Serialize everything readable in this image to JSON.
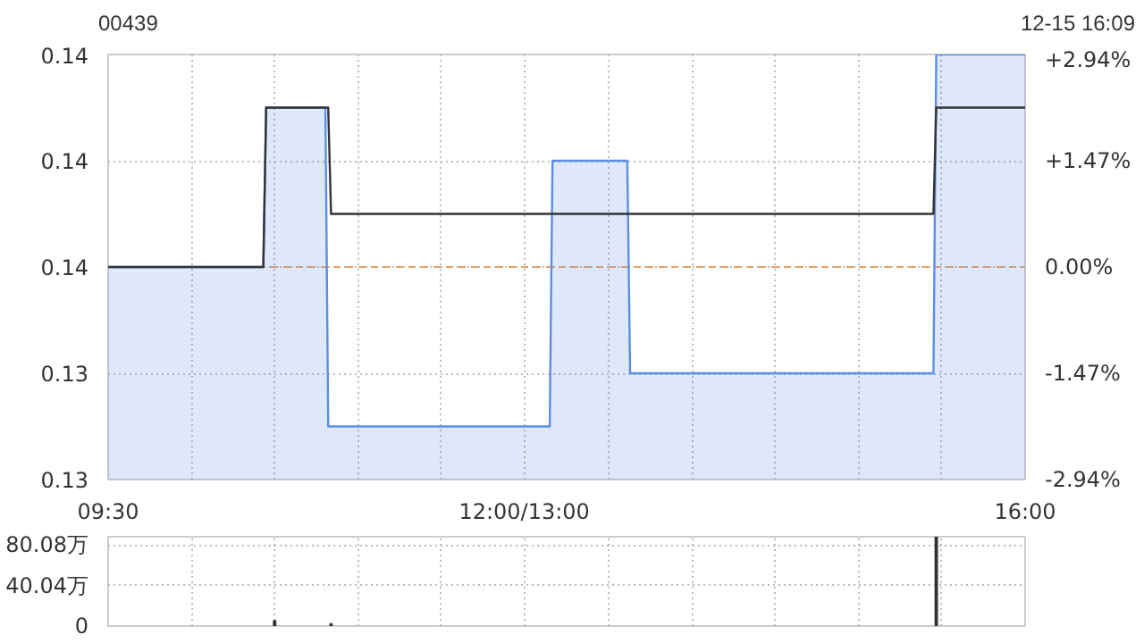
{
  "chart_data": [
    {
      "type": "area",
      "title": "00439",
      "annotations": [
        "12-15 16:09"
      ],
      "series": [
        {
          "type": "area",
          "color": "#5b8ee6",
          "x": [
            9.5,
            10.6,
            10.62,
            11.04,
            11.06,
            12.63,
            12.65,
            13.18,
            13.2,
            15.35,
            15.37,
            16
          ],
          "values": [
            0.136,
            0.136,
            0.139,
            0.139,
            0.133,
            0.133,
            0.138,
            0.138,
            0.134,
            0.134,
            0.14,
            0.14
          ]
        },
        {
          "type": "line",
          "color": "#333333",
          "x": [
            9.5,
            10.6,
            10.62,
            11.06,
            11.08,
            15.35,
            15.37,
            16
          ],
          "values": [
            0.136,
            0.136,
            0.139,
            0.139,
            0.137,
            0.137,
            0.139,
            0.139
          ]
        }
      ],
      "xlim": [
        9.5,
        16
      ],
      "xticks": [
        {
          "value": 9.5,
          "label": "09:30"
        },
        {
          "value": 10.09,
          "label": null
        },
        {
          "value": 10.68,
          "label": null
        },
        {
          "value": 11.27,
          "label": null
        },
        {
          "value": 11.86,
          "label": null
        },
        {
          "value": 12.45,
          "label": "12:00/13:00"
        },
        {
          "value": 13.05,
          "label": null
        },
        {
          "value": 13.64,
          "label": null
        },
        {
          "value": 14.23,
          "label": null
        },
        {
          "value": 14.82,
          "label": null
        },
        {
          "value": 15.41,
          "label": null
        },
        {
          "value": 16,
          "label": "16:00"
        }
      ],
      "ylim": [
        0.132,
        0.14
      ],
      "yticks": [
        {
          "value": 0.132,
          "label": "0.13"
        },
        {
          "value": 0.134,
          "label": "0.13"
        },
        {
          "value": 0.136,
          "label": "0.14"
        },
        {
          "value": 0.138,
          "label": "0.14"
        },
        {
          "value": 0.14,
          "label": "0.14"
        }
      ],
      "y2lim": [
        -2.94,
        2.94
      ],
      "y2ticks": [
        {
          "value": -2.94,
          "label": "-2.94%"
        },
        {
          "value": -1.47,
          "label": "-1.47%"
        },
        {
          "value": 0,
          "label": "0.00%"
        },
        {
          "value": 1.47,
          "label": "+1.47%"
        },
        {
          "value": 2.94,
          "label": "+2.94%"
        }
      ],
      "ref_lines": [
        {
          "axis": "y",
          "value": 0.136,
          "color": "#f0a060",
          "line_style": "dashed"
        }
      ],
      "grid": true
    },
    {
      "type": "bar",
      "x": [
        10.68,
        11.08,
        15.37
      ],
      "values": [
        5,
        2,
        88
      ],
      "color": "#333333",
      "xlim": [
        9.5,
        16
      ],
      "xticks": [
        {
          "value": 9.5,
          "label": null
        },
        {
          "value": 10.09,
          "label": null
        },
        {
          "value": 10.68,
          "label": null
        },
        {
          "value": 11.27,
          "label": null
        },
        {
          "value": 11.86,
          "label": null
        },
        {
          "value": 12.45,
          "label": null
        },
        {
          "value": 13.05,
          "label": null
        },
        {
          "value": 13.64,
          "label": null
        },
        {
          "value": 14.23,
          "label": null
        },
        {
          "value": 14.82,
          "label": null
        },
        {
          "value": 15.41,
          "label": null
        },
        {
          "value": 16,
          "label": null
        }
      ],
      "ylim": [
        0,
        88
      ],
      "yticks": [
        {
          "value": 0,
          "label": "0"
        },
        {
          "value": 40.04,
          "label": "40.04万"
        },
        {
          "value": 80.08,
          "label": "80.08万"
        }
      ],
      "tick_labels": "y",
      "grid": true
    }
  ]
}
